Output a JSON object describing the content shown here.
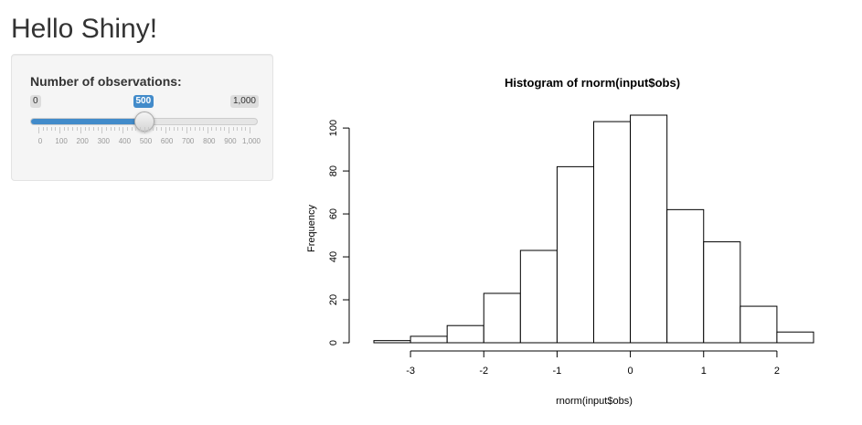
{
  "page": {
    "title": "Hello Shiny!"
  },
  "sidebar": {
    "slider": {
      "label": "Number of observations:",
      "min": 0,
      "max": 1000,
      "value": 500,
      "min_label": "0",
      "max_label": "1,000",
      "value_label": "500",
      "ticks": [
        "0",
        "100",
        "200",
        "300",
        "400",
        "500",
        "600",
        "700",
        "800",
        "900",
        "1,000"
      ]
    }
  },
  "chart_data": {
    "type": "bar",
    "title": "Histogram of rnorm(input$obs)",
    "xlabel": "rnorm(input$obs)",
    "ylabel": "Frequency",
    "bins": [
      {
        "x0": -3.5,
        "x1": -3.0,
        "value": 1
      },
      {
        "x0": -3.0,
        "x1": -2.5,
        "value": 3
      },
      {
        "x0": -2.5,
        "x1": -2.0,
        "value": 8
      },
      {
        "x0": -2.0,
        "x1": -1.5,
        "value": 23
      },
      {
        "x0": -1.5,
        "x1": -1.0,
        "value": 43
      },
      {
        "x0": -1.0,
        "x1": -0.5,
        "value": 82
      },
      {
        "x0": -0.5,
        "x1": 0.0,
        "value": 103
      },
      {
        "x0": 0.0,
        "x1": 0.5,
        "value": 106
      },
      {
        "x0": 0.5,
        "x1": 1.0,
        "value": 62
      },
      {
        "x0": 1.0,
        "x1": 1.5,
        "value": 47
      },
      {
        "x0": 1.5,
        "x1": 2.0,
        "value": 17
      },
      {
        "x0": 2.0,
        "x1": 2.5,
        "value": 5
      }
    ],
    "xlim": [
      -3.5,
      2.5
    ],
    "ylim": [
      0,
      106
    ],
    "x_ticks": [
      -3,
      -2,
      -1,
      0,
      1,
      2
    ],
    "x_tick_labels": [
      "-3",
      "-2",
      "-1",
      "0",
      "1",
      "2"
    ],
    "y_ticks": [
      0,
      20,
      40,
      60,
      80,
      100
    ],
    "y_tick_labels": [
      "0",
      "20",
      "40",
      "60",
      "80",
      "100"
    ],
    "grid": false,
    "bar_fill": "#ffffff",
    "bar_stroke": "#000000"
  },
  "colors": {
    "accent": "#428bca",
    "panel": "#f5f5f5"
  }
}
